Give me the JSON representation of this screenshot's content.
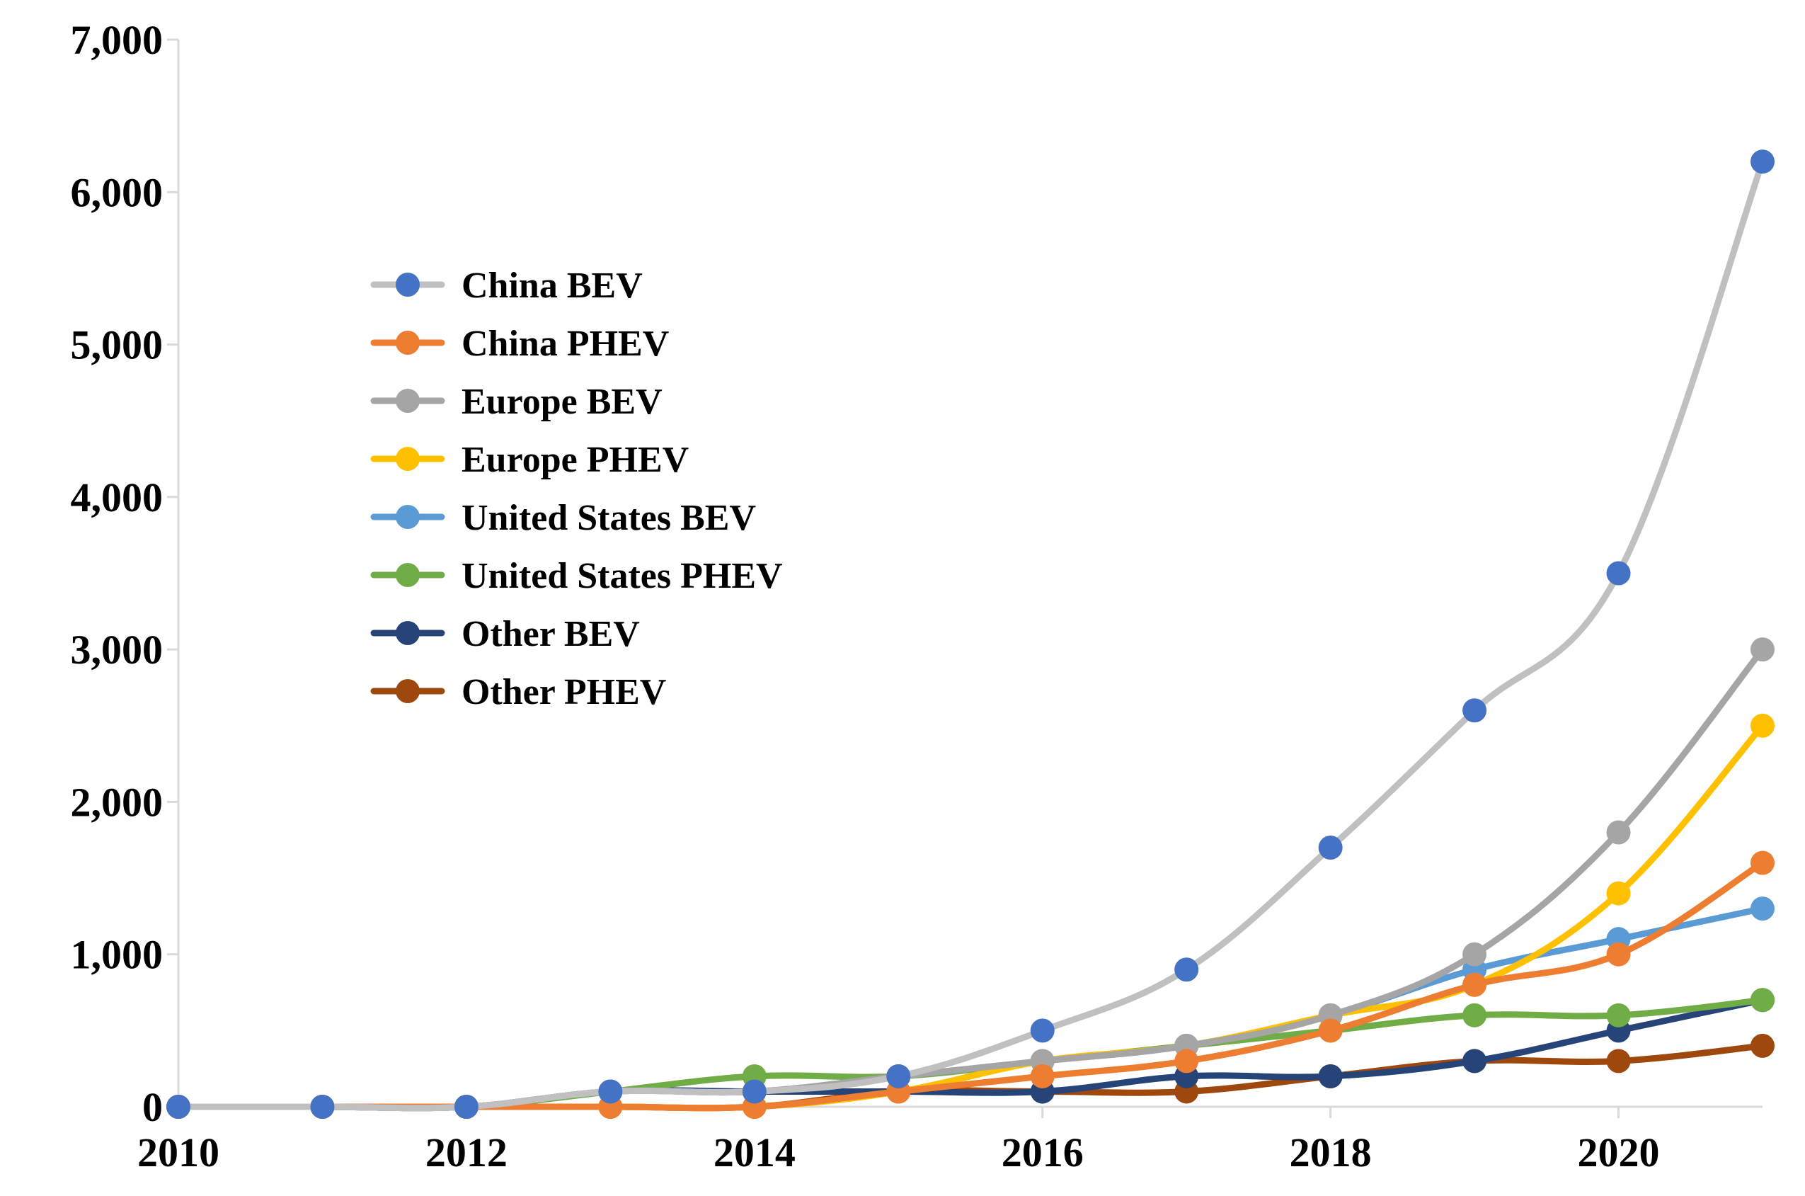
{
  "chart_data": {
    "type": "line",
    "title": "",
    "xlabel": "",
    "ylabel": "",
    "xlim": [
      2010,
      2021
    ],
    "ylim": [
      0,
      7000
    ],
    "grid": false,
    "smooth": true,
    "x_ticks": [
      2010,
      2012,
      2014,
      2016,
      2018,
      2020
    ],
    "x_tick_labels": [
      "2010",
      "2012",
      "2014",
      "2016",
      "2018",
      "2020"
    ],
    "y_ticks": [
      0,
      1000,
      2000,
      3000,
      4000,
      5000,
      6000,
      7000
    ],
    "y_tick_labels": [
      "0",
      "1,000",
      "2,000",
      "3,000",
      "4,000",
      "5,000",
      "6,000",
      "7,000"
    ],
    "legend_position": "center-left",
    "x": [
      2010,
      2011,
      2012,
      2013,
      2014,
      2015,
      2016,
      2017,
      2018,
      2019,
      2020,
      2021
    ],
    "series": [
      {
        "name": "China BEV",
        "line_color": "#c0c0c0",
        "marker_color": "#4472c4",
        "values": [
          0,
          0,
          0,
          100,
          100,
          200,
          500,
          900,
          1700,
          2600,
          3500,
          6200
        ]
      },
      {
        "name": "China PHEV",
        "line_color": "#ed7d31",
        "marker_color": "#ed7d31",
        "values": [
          0,
          0,
          0,
          0,
          0,
          100,
          200,
          300,
          500,
          800,
          1000,
          1600
        ]
      },
      {
        "name": "Europe BEV",
        "line_color": "#a5a5a5",
        "marker_color": "#a5a5a5",
        "values": [
          0,
          0,
          0,
          100,
          100,
          200,
          300,
          400,
          600,
          1000,
          1800,
          3000
        ]
      },
      {
        "name": "Europe PHEV",
        "line_color": "#ffc000",
        "marker_color": "#ffc000",
        "values": [
          0,
          0,
          0,
          0,
          0,
          100,
          300,
          400,
          600,
          800,
          1400,
          2500
        ]
      },
      {
        "name": "United States BEV",
        "line_color": "#5b9bd5",
        "marker_color": "#5b9bd5",
        "values": [
          0,
          0,
          0,
          100,
          100,
          200,
          300,
          400,
          600,
          900,
          1100,
          1300
        ]
      },
      {
        "name": "United States PHEV",
        "line_color": "#70ad47",
        "marker_color": "#70ad47",
        "values": [
          0,
          0,
          0,
          100,
          200,
          200,
          300,
          400,
          500,
          600,
          600,
          700
        ]
      },
      {
        "name": "Other BEV",
        "line_color": "#264478",
        "marker_color": "#264478",
        "values": [
          0,
          0,
          0,
          100,
          100,
          100,
          100,
          200,
          200,
          300,
          500,
          700
        ]
      },
      {
        "name": "Other PHEV",
        "line_color": "#9e480e",
        "marker_color": "#9e480e",
        "values": [
          0,
          0,
          0,
          0,
          0,
          100,
          100,
          100,
          200,
          300,
          300,
          400
        ]
      }
    ]
  }
}
